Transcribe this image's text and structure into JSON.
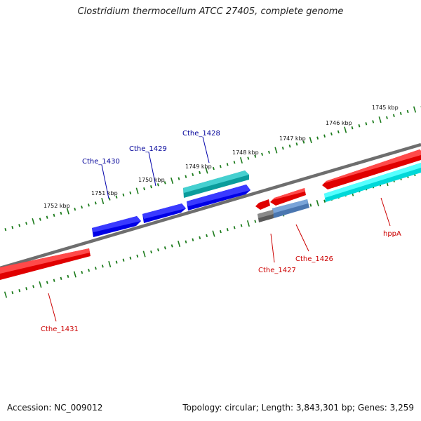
{
  "title": "Clostridium thermocellum ATCC 27405, complete genome",
  "footer": {
    "accession": "Accession: NC_009012",
    "summary": "Topology: circular; Length: 3,843,301 bp; Genes: 3,259"
  },
  "scale": {
    "unit": "kbp",
    "labels": [
      "1745 kbp",
      "1746 kbp",
      "1747 kbp",
      "1748 kbp",
      "1749 kbp",
      "1750 kbp",
      "1751 kbp",
      "1752 kbp"
    ]
  },
  "colors": {
    "backbone": "#808080",
    "ticks": "#1a7a1a",
    "forward_labels": "#000099",
    "reverse_labels": "#cc0000",
    "red_feature": "#ff0000",
    "blue_feature": "#0000ee",
    "teal_feature": "#00aaaa",
    "cyan_feature": "#00ffff",
    "steel_feature": "#4f7fb8",
    "gray_feature": "#666666"
  },
  "genes": {
    "forward": [
      "Cthe_1428",
      "Cthe_1429",
      "Cthe_1430"
    ],
    "reverse": [
      "Cthe_1426",
      "Cthe_1427",
      "Cthe_1431",
      "hppA"
    ]
  }
}
